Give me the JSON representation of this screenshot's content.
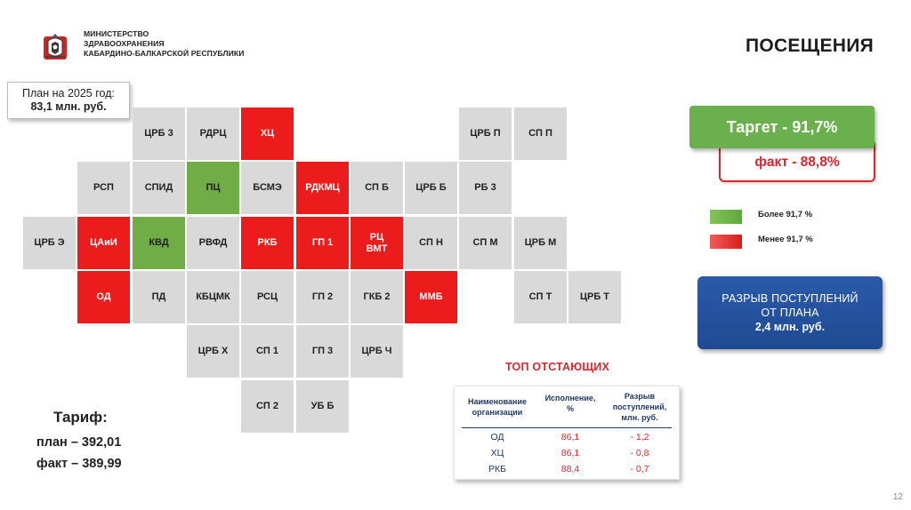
{
  "header": {
    "ministry_lines": [
      "МИНИСТЕРСТВО",
      "ЗДРАВООХРАНЕНИЯ",
      "КАБАРДИНО-БАЛКАРСКОЙ РЕСПУБЛИКИ"
    ],
    "title": "ПОСЕЩЕНИЯ"
  },
  "plan_box": {
    "line1": "План на 2025 год:",
    "line2": "83,1 млн. руб."
  },
  "colors": {
    "gray": "#d9d9d9",
    "red": "#ec1c1c",
    "green": "#70ad47",
    "navy": "#1f3864",
    "blue": "#2a5aa8"
  },
  "grid": [
    {
      "label": "ЦРБ 3",
      "status": "gray"
    },
    {
      "label": "РДРЦ",
      "status": "gray"
    },
    {
      "label": "ХЦ",
      "status": "red"
    },
    {
      "label": "ЦРБ П",
      "status": "gray"
    },
    {
      "label": "СП П",
      "status": "gray"
    },
    {
      "label": "РСП",
      "status": "gray"
    },
    {
      "label": "СПИД",
      "status": "gray"
    },
    {
      "label": "ПЦ",
      "status": "green"
    },
    {
      "label": "БСМЭ",
      "status": "gray"
    },
    {
      "label": "РДКМЦ",
      "status": "red"
    },
    {
      "label": "СП Б",
      "status": "gray"
    },
    {
      "label": "ЦРБ Б",
      "status": "gray"
    },
    {
      "label": "РБ 3",
      "status": "gray"
    },
    {
      "label": "ЦРБ Э",
      "status": "gray"
    },
    {
      "label": "ЦАиИ",
      "status": "red"
    },
    {
      "label": "КВД",
      "status": "green"
    },
    {
      "label": "РВФД",
      "status": "gray"
    },
    {
      "label": "РКБ",
      "status": "red"
    },
    {
      "label": "ГП 1",
      "status": "red"
    },
    {
      "label": "РЦ\nВМТ",
      "status": "red"
    },
    {
      "label": "СП Н",
      "status": "gray"
    },
    {
      "label": "СП М",
      "status": "gray"
    },
    {
      "label": "ЦРБ М",
      "status": "gray"
    },
    {
      "label": "ОД",
      "status": "red"
    },
    {
      "label": "ПД",
      "status": "gray"
    },
    {
      "label": "КБЦМК",
      "status": "gray"
    },
    {
      "label": "РСЦ",
      "status": "gray"
    },
    {
      "label": "ГП 2",
      "status": "gray"
    },
    {
      "label": "ГКБ 2",
      "status": "gray"
    },
    {
      "label": "ММБ",
      "status": "red"
    },
    {
      "label": "СП Т",
      "status": "gray"
    },
    {
      "label": "ЦРБ Т",
      "status": "gray"
    },
    {
      "label": "ЦРБ Х",
      "status": "gray"
    },
    {
      "label": "СП 1",
      "status": "gray"
    },
    {
      "label": "ГП 3",
      "status": "gray"
    },
    {
      "label": "ЦРБ Ч",
      "status": "gray"
    },
    {
      "label": "СП 2",
      "status": "gray"
    },
    {
      "label": "УБ Б",
      "status": "gray"
    }
  ],
  "target": {
    "target_label": "Таргет  -  91,7%",
    "fact_label": "факт  -  88,8%"
  },
  "legend": {
    "above": "Более 91,7 %",
    "below": "Менее 91,7 %"
  },
  "gap": {
    "line1": "РАЗРЫВ ПОСТУПЛЕНИЙ",
    "line2": "ОТ ПЛАНА",
    "line3": "2,4 млн. руб."
  },
  "top_lagging": {
    "title": "ТОП ОТСТАЮЩИХ",
    "headers": [
      "Наименование\nорганизации",
      "Исполнение,\n%",
      "Разрыв\nпоступлений,\nмлн. руб."
    ],
    "rows": [
      {
        "org": "ОД",
        "exec": "86,1",
        "gap": "- 1,2"
      },
      {
        "org": "ХЦ",
        "exec": "86,1",
        "gap": "- 0,8"
      },
      {
        "org": "РКБ",
        "exec": "88,4",
        "gap": "- 0,7"
      }
    ]
  },
  "tariff": {
    "title": "Тариф:",
    "plan": "план – 392,01",
    "fact": "факт – 389,99"
  },
  "page_number": "12"
}
